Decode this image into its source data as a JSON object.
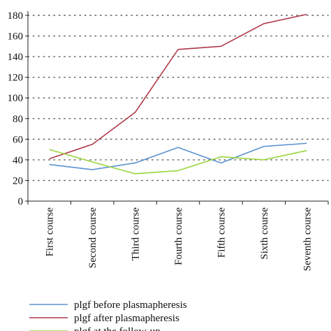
{
  "chart_data": {
    "type": "line",
    "categories": [
      "First course",
      "Second course",
      "Third course",
      "Fourth course",
      "Fifth course",
      "Sixth course",
      "Seventh course"
    ],
    "ylim": [
      0,
      180
    ],
    "yticks": [
      0,
      20,
      40,
      60,
      80,
      100,
      120,
      140,
      160,
      180
    ],
    "grid": "horizontal dotted",
    "legend_position": "bottom",
    "series": [
      {
        "name": "plgf before plasmapheresis",
        "color": "#5b93d0",
        "values": [
          35.5,
          30.5,
          37,
          52,
          37,
          53,
          56
        ]
      },
      {
        "name": "plgf after plasmapheresis",
        "color": "#b0384a",
        "values": [
          41,
          55,
          86,
          147,
          150,
          172,
          181
        ]
      },
      {
        "name": "plgf at the follow-up",
        "color": "#9ad43c",
        "values": [
          50,
          38,
          26.5,
          29.5,
          43,
          40,
          49
        ]
      }
    ]
  }
}
